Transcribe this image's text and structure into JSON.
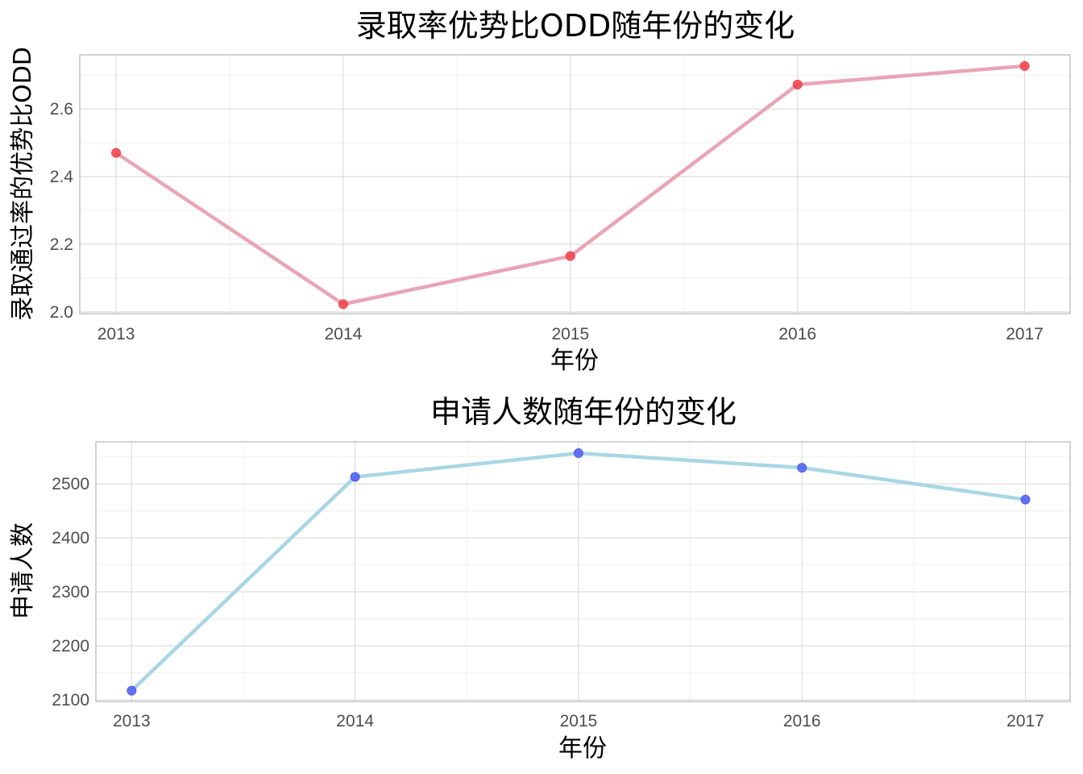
{
  "chart_data": [
    {
      "type": "line",
      "title": "录取率优势比ODD随年份的变化",
      "xlabel": "年份",
      "ylabel": "录取通过率的优势比ODD",
      "x": [
        2013,
        2014,
        2015,
        2016,
        2017
      ],
      "x_tick_labels": [
        "2013",
        "2014",
        "2015",
        "2016",
        "2017"
      ],
      "series": [
        {
          "values": [
            2.47,
            2.023,
            2.165,
            2.672,
            2.727
          ]
        }
      ],
      "xlim": [
        2012.84,
        2017.2
      ],
      "ylim": [
        1.995,
        2.76
      ],
      "y_ticks": [
        2.0,
        2.2,
        2.4,
        2.6
      ],
      "y_tick_labels": [
        "2.0",
        "2.2",
        "2.4",
        "2.6"
      ],
      "line_color": "#e8a5b5",
      "point_color": "#f0404b",
      "grid": true,
      "legend": "none"
    },
    {
      "type": "line",
      "title": "申请人数随年份的变化",
      "xlabel": "年份",
      "ylabel": "申请人数",
      "x": [
        2013,
        2014,
        2015,
        2016,
        2017
      ],
      "x_tick_labels": [
        "2013",
        "2014",
        "2015",
        "2016",
        "2017"
      ],
      "series": [
        {
          "values": [
            2117,
            2513,
            2557,
            2530,
            2471
          ]
        }
      ],
      "xlim": [
        2012.84,
        2017.2
      ],
      "ylim": [
        2097,
        2578
      ],
      "y_ticks": [
        2100,
        2200,
        2300,
        2400,
        2500
      ],
      "y_tick_labels": [
        "2100",
        "2200",
        "2300",
        "2400",
        "2500"
      ],
      "line_color": "#a8d6e4",
      "point_color": "#4f5cf0",
      "grid": true,
      "legend": "none"
    }
  ]
}
